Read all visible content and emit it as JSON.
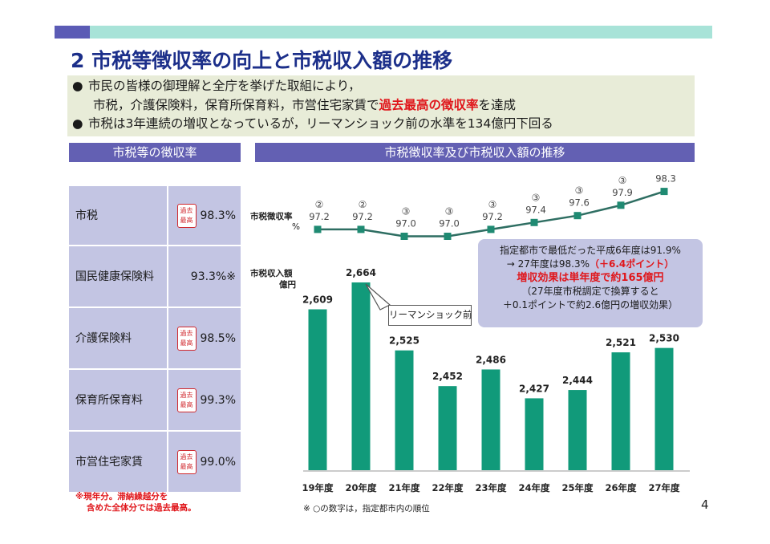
{
  "title": "2 市税等徴収率の向上と市税収入額の推移",
  "bullets": [
    {
      "marker": "●",
      "line1": "市民の皆様の御理解と全庁を挙げた取組により，",
      "line2_pre": "市税，介護保険料，保育所保育料，市営住宅家賃で",
      "line2_red": "過去最高の徴収率",
      "line2_post": "を達成"
    },
    {
      "marker": "●",
      "text": "市税は3年連続の増収となっているが，リーマンショック前の水準を134億円下回る"
    }
  ],
  "left_header": "市税等の徴収率",
  "right_header": "市税徴収率及び市税収入額の推移",
  "stamp": {
    "line1": "過去",
    "line2": "最高"
  },
  "rates": [
    {
      "name": "市税",
      "value": "98.3%",
      "record": true
    },
    {
      "name": "国民健康保険料",
      "value": "93.3%※",
      "record": false
    },
    {
      "name": "介護保険料",
      "value": "98.5%",
      "record": true
    },
    {
      "name": "保育所保育料",
      "value": "99.3%",
      "record": true
    },
    {
      "name": "市営住宅家賃",
      "value": "99.0%",
      "record": true
    }
  ],
  "footnote_left": [
    "※現年分。滞納繰越分を",
    "含めた全体分では過去最高。"
  ],
  "footnote_right": "※ ○の数字は，指定都市内の順位",
  "page_number": "4",
  "callout": {
    "line1": "指定都市で最低だった平成6年度は91.9%",
    "line2_pre": "→ 27年度は98.3%",
    "line2_red": "（＋6.4ポイント）",
    "line3": "増収効果は単年度で約165億円",
    "line4": "（27年度市税調定で換算すると",
    "line5": "＋0.1ポイントで約2.6億円の増収効果）"
  },
  "lehman_label": "リーマンショック前",
  "chart_data": {
    "type": "bar",
    "categories": [
      "19年度",
      "20年度",
      "21年度",
      "22年度",
      "23年度",
      "24年度",
      "25年度",
      "26年度",
      "27年度"
    ],
    "series": [
      {
        "name": "市税収入額",
        "values": [
          2609,
          2664,
          2525,
          2452,
          2486,
          2427,
          2444,
          2521,
          2530
        ],
        "labels": [
          "2,609",
          "2,664",
          "2,525",
          "2,452",
          "2,486",
          "2,427",
          "2,444",
          "2,521",
          "2,530"
        ],
        "color": "#119a7a"
      },
      {
        "name": "市税徴収率",
        "type": "line",
        "values": [
          97.2,
          97.2,
          97.0,
          97.0,
          97.2,
          97.4,
          97.6,
          97.9,
          98.3
        ],
        "labels": [
          "97.2",
          "97.2",
          "97.0",
          "97.0",
          "97.2",
          "97.4",
          "97.6",
          "97.9",
          "98.3"
        ],
        "ranks": [
          "②",
          "②",
          "③",
          "③",
          "③",
          "③",
          "③",
          "③",
          ""
        ],
        "color": "#2e6e62"
      }
    ],
    "line_label": "市税徴収率",
    "line_unit": "%",
    "bar_label": "市税収入額",
    "bar_unit": "億円"
  }
}
